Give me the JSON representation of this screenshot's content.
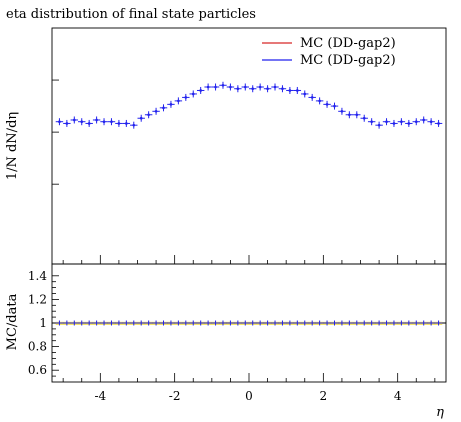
{
  "chart_data": [
    {
      "type": "scatter",
      "title": "eta distribution of final state particles",
      "ylabel": "1/N dN/dη",
      "xlim": [
        -5.3,
        5.3
      ],
      "y_tick_labels": [],
      "legend_placement": "top-right",
      "series": [
        {
          "name": "MC (DD-gap2)",
          "color": "#d62728",
          "style": "line",
          "x": [],
          "y": []
        },
        {
          "name": "MC (DD-gap2)",
          "color": "#2222ee",
          "style": "points",
          "x": [
            -5.1,
            -4.9,
            -4.7,
            -4.5,
            -4.3,
            -4.1,
            -3.9,
            -3.7,
            -3.5,
            -3.3,
            -3.1,
            -2.9,
            -2.7,
            -2.5,
            -2.3,
            -2.1,
            -1.9,
            -1.7,
            -1.5,
            -1.3,
            -1.1,
            -0.9,
            -0.7,
            -0.5,
            -0.3,
            -0.1,
            0.1,
            0.3,
            0.5,
            0.7,
            0.9,
            1.1,
            1.3,
            1.5,
            1.7,
            1.9,
            2.1,
            2.3,
            2.5,
            2.7,
            2.9,
            3.1,
            3.3,
            3.5,
            3.7,
            3.9,
            4.1,
            4.3,
            4.5,
            4.7,
            4.9,
            5.1
          ],
          "y": [
            0.98,
            0.975,
            0.985,
            0.98,
            0.975,
            0.985,
            0.98,
            0.98,
            0.975,
            0.975,
            0.97,
            0.99,
            1.0,
            1.01,
            1.02,
            1.03,
            1.04,
            1.05,
            1.06,
            1.07,
            1.08,
            1.08,
            1.085,
            1.08,
            1.075,
            1.08,
            1.075,
            1.08,
            1.075,
            1.08,
            1.075,
            1.07,
            1.07,
            1.06,
            1.05,
            1.04,
            1.03,
            1.025,
            1.01,
            1.0,
            1.0,
            0.99,
            0.98,
            0.97,
            0.98,
            0.975,
            0.98,
            0.975,
            0.98,
            0.985,
            0.98,
            0.975
          ]
        }
      ],
      "legend": [
        "MC (DD-gap2)",
        "MC (DD-gap2)"
      ]
    },
    {
      "type": "scatter",
      "ylabel": "MC/data",
      "xlabel": "η",
      "xlim": [
        -5.3,
        5.3
      ],
      "ylim": [
        0.5,
        1.5
      ],
      "x_ticks": [
        -4,
        -2,
        0,
        2,
        4
      ],
      "x_tick_labels": [
        "-4",
        "-2",
        "0",
        "2",
        "4"
      ],
      "y_ticks": [
        0.6,
        0.8,
        1,
        1.2,
        1.4
      ],
      "y_tick_labels": [
        "0.6",
        "0.8",
        "1",
        "1.2",
        "1.4"
      ],
      "reference_line": 1,
      "band_color": "#f5e14a",
      "series": [
        {
          "name": "",
          "color": "#2222ee",
          "x": [
            -5.1,
            -4.9,
            -4.7,
            -4.5,
            -4.3,
            -4.1,
            -3.9,
            -3.7,
            -3.5,
            -3.3,
            -3.1,
            -2.9,
            -2.7,
            -2.5,
            -2.3,
            -2.1,
            -1.9,
            -1.7,
            -1.5,
            -1.3,
            -1.1,
            -0.9,
            -0.7,
            -0.5,
            -0.3,
            -0.1,
            0.1,
            0.3,
            0.5,
            0.7,
            0.9,
            1.1,
            1.3,
            1.5,
            1.7,
            1.9,
            2.1,
            2.3,
            2.5,
            2.7,
            2.9,
            3.1,
            3.3,
            3.5,
            3.7,
            3.9,
            4.1,
            4.3,
            4.5,
            4.7,
            4.9,
            5.1
          ],
          "y": [
            1,
            1,
            1,
            1,
            1,
            1,
            1,
            1,
            1,
            1,
            1,
            1,
            1,
            1,
            1,
            1,
            1,
            1,
            1,
            1,
            1,
            1,
            1,
            1,
            1,
            1,
            1,
            1,
            1,
            1,
            1,
            1,
            1,
            1,
            1,
            1,
            1,
            1,
            1,
            1,
            1,
            1,
            1,
            1,
            1,
            1,
            1,
            1,
            1,
            1,
            1,
            1
          ]
        }
      ]
    }
  ]
}
